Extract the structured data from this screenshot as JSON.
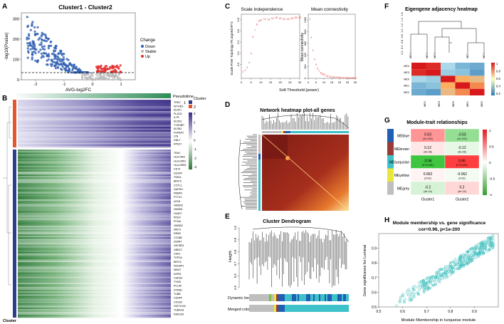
{
  "panels": {
    "A": {
      "label": "A",
      "chart_data": {
        "type": "scatter",
        "title": "Cluster1  -  Cluster2",
        "xlabel": "AVG-log2FC",
        "ylabel": "-log10(Pvalue)",
        "xlim": [
          -2.5,
          1.5
        ],
        "ylim": [
          0,
          330
        ],
        "xticks": [
          -2,
          -1,
          0,
          1
        ],
        "yticks": [
          0,
          100,
          200,
          300
        ],
        "threshold_line": 35,
        "legend_title": "Change",
        "legend": [
          {
            "name": "Down",
            "color": "#2f5fb3"
          },
          {
            "name": "Stable",
            "color": "#b8b8b8"
          },
          {
            "name": "Up",
            "color": "#e03030"
          }
        ]
      }
    },
    "B": {
      "label": "B",
      "chart_data": {
        "type": "heatmap",
        "annotation_pseudotime": "Pseudotime",
        "annotation_cluster": "Cluster",
        "legend_cluster_title": "Cluster",
        "legend_cluster": [
          "1",
          "2"
        ],
        "colorbar_ticks": [
          "3",
          "2",
          "1",
          "0",
          "-1",
          "-2",
          "-3"
        ],
        "genes_group2": [
          "TRDC",
          "MT-ND3",
          "KLRF1",
          "PLAC8",
          "IL7R",
          "KLRD1",
          "TYROBP",
          "KLRB1",
          "FGFBP2",
          "LTB",
          "GNLY",
          "RPS27"
        ],
        "genes_group1": [
          "TRAC",
          "HLA-DRA",
          "HLA-DPA1",
          "HLA-DRB1",
          "CD74",
          "DUSP4",
          "ITM2A",
          "BIRC5",
          "COTL1",
          "GAPDH",
          "PABPN",
          "PTTG1",
          "AZ1B",
          "HMGN2",
          "HMGB1",
          "H2AFZ",
          "PRDX",
          "PCNA",
          "HMGB2",
          "SMC4",
          "RRM2",
          "CCNB2",
          "ZWINT",
          "UHCBD1",
          "UBE2C",
          "CDK1",
          "TOP2A",
          "BIRC5",
          "NUSAP1",
          "MKI67",
          "ASPM",
          "CDKN3",
          "TYMS",
          "PCLAF",
          "STMN1",
          "TUBB",
          "CENPF",
          "CKS1B",
          "HIST1H4C",
          "TUBA1B",
          "RAD23A"
        ]
      }
    },
    "C": {
      "label": "C",
      "chart_data": [
        {
          "type": "scatter",
          "title": "Scale independence",
          "xlabel": "",
          "ylabel": "Scale Free Topology Fit,signed R^2",
          "xlim": [
            0,
            30
          ],
          "ylim": [
            -0.25,
            0.9
          ],
          "xticks": [
            0,
            5,
            10,
            15,
            20,
            25,
            30
          ],
          "yticks": [
            "0.0",
            "0.2",
            "0.4",
            "0.6",
            "0.8"
          ],
          "x": [
            1,
            2,
            3,
            4,
            5,
            6,
            7,
            8,
            9,
            10,
            12,
            14,
            16,
            18,
            20,
            22,
            24,
            26,
            28,
            30
          ],
          "values": [
            -0.12,
            -0.1,
            -0.05,
            0.04,
            0.2,
            0.5,
            0.62,
            0.72,
            0.78,
            0.8,
            0.82,
            0.81,
            0.83,
            0.84,
            0.83,
            0.82,
            0.82,
            0.83,
            0.84,
            0.84
          ]
        },
        {
          "type": "scatter",
          "title": "Mean connectivity",
          "xlabel": "Soft Threshold (power)",
          "ylabel": "Mean connectivity",
          "xlim": [
            0,
            30
          ],
          "ylim": [
            0,
            1100
          ],
          "xticks": [
            0,
            5,
            10,
            15,
            20,
            25,
            30
          ],
          "yticks": [
            "0",
            "200",
            "400",
            "600",
            "800",
            "1000"
          ],
          "x": [
            1,
            2,
            3,
            4,
            5,
            6,
            7,
            8,
            9,
            10,
            12,
            14,
            16,
            18,
            20,
            22,
            24,
            26,
            28,
            30
          ],
          "values": [
            1020,
            700,
            480,
            330,
            240,
            170,
            130,
            100,
            80,
            65,
            45,
            33,
            26,
            20,
            16,
            13,
            11,
            9,
            8,
            7
          ]
        }
      ]
    },
    "D": {
      "label": "D",
      "chart_data": {
        "type": "heatmap",
        "title": "Network heatmap plot-all genes"
      }
    },
    "E": {
      "label": "E",
      "chart_data": {
        "type": "dendrogram",
        "title": "Cluster Dendrogram",
        "ylabel": "Height",
        "yticks": [
          "0.5",
          "0.6",
          "0.7",
          "0.8",
          "0.9",
          "1.0"
        ],
        "bars": [
          "Dynamic tree cut",
          "Merged colors"
        ]
      }
    },
    "F": {
      "label": "F",
      "chart_data": {
        "type": "heatmap",
        "title": "Eigengene adjacency heatmap",
        "modules": [
          "ME4",
          "ME3",
          "ME0",
          "ME1",
          "ME2"
        ],
        "dendro_ticks": [
          "0.2",
          "0.4",
          "0.6",
          "0.8",
          "1.0",
          "1.2",
          "1.4",
          "1.6"
        ],
        "colorbar_ticks": [
          "1",
          "0.8",
          "0.6",
          "0.4",
          "0.2"
        ],
        "matrix": [
          [
            1.0,
            0.95,
            0.4,
            0.25,
            0.2
          ],
          [
            0.95,
            1.0,
            0.35,
            0.3,
            0.15
          ],
          [
            0.4,
            0.35,
            1.0,
            0.6,
            0.55
          ],
          [
            0.25,
            0.3,
            0.6,
            1.0,
            0.7
          ],
          [
            0.2,
            0.15,
            0.55,
            0.7,
            1.0
          ]
        ]
      }
    },
    "G": {
      "label": "G",
      "chart_data": {
        "type": "table",
        "title": "Module-trait relationships",
        "columns": [
          "Cluster1",
          "Cluster2"
        ],
        "colorbar_ticks": [
          "1",
          "0.5",
          "0",
          "-0.5",
          "-1"
        ],
        "rows": [
          {
            "name": "MEblue",
            "color": "#1f5fb5",
            "values": [
              0.53,
              -0.53
            ],
            "labels": [
              "0.53",
              "-0.53"
            ],
            "p": [
              "(1e-101)",
              "(1e-101)"
            ]
          },
          {
            "name": "MEbrown",
            "color": "#9b3b36",
            "values": [
              0.12,
              -0.12
            ],
            "labels": [
              "0.12",
              "-0.12"
            ],
            "p": [
              "(4e-06)",
              "(4e-06)"
            ]
          },
          {
            "name": "MEturquoise",
            "color": "#3fc1c9",
            "values": [
              -0.96,
              0.96
            ],
            "labels": [
              "-0.96",
              "0.96"
            ],
            "p": [
              "(P<0.001)",
              "(P<0.001)"
            ]
          },
          {
            "name": "MEyellow",
            "color": "#e8e83a",
            "values": [
              0.062,
              -0.062
            ],
            "labels": [
              "0.062",
              "-0.062"
            ],
            "p": [
              "(0.02)",
              "(0.02)"
            ]
          },
          {
            "name": "MEgrey",
            "color": "#bfbfbf",
            "values": [
              -0.2,
              0.2
            ],
            "labels": [
              "-0.2",
              "0.2"
            ],
            "p": [
              "(4e-14)",
              "(4e-14)"
            ]
          }
        ]
      }
    },
    "H": {
      "label": "H",
      "chart_data": {
        "type": "scatter",
        "title": "Module membership vs. gene significance",
        "subtitle": "cor=0.96, p<1e-200",
        "xlabel": "Module Membership in turquoise module",
        "ylabel": "Gene significance for Luminal",
        "xlim": [
          0.5,
          1.0
        ],
        "ylim": [
          0.5,
          1.0
        ],
        "xticks": [
          "0.5",
          "0.6",
          "0.7",
          "0.8",
          "0.9"
        ],
        "yticks": [
          "0.5",
          "0.6",
          "0.7",
          "0.8",
          "0.9"
        ],
        "color": "#3fbfbf"
      }
    }
  }
}
